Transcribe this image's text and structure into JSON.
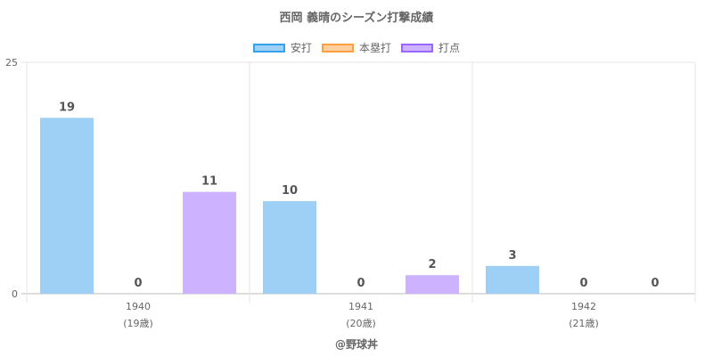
{
  "title": "西岡 義晴のシーズン打撃成績",
  "footer": "@野球丼",
  "chart_data": {
    "type": "bar",
    "categories": [
      "1940",
      "1941",
      "1942"
    ],
    "category_sublabels": [
      "(19歳)",
      "(20歳)",
      "(21歳)"
    ],
    "series": [
      {
        "name": "安打",
        "values": [
          19,
          10,
          3
        ],
        "fill": "#9ed0f5",
        "border": "#36a2eb"
      },
      {
        "name": "本塁打",
        "values": [
          0,
          0,
          0
        ],
        "fill": "#ffcf9f",
        "border": "#ff9f40"
      },
      {
        "name": "打点",
        "values": [
          11,
          2,
          0
        ],
        "fill": "#ccb2ff",
        "border": "#9966ff"
      }
    ],
    "ylim": [
      0,
      25
    ],
    "yticks": [
      0,
      25
    ],
    "grid": true,
    "legend_position": "top"
  }
}
